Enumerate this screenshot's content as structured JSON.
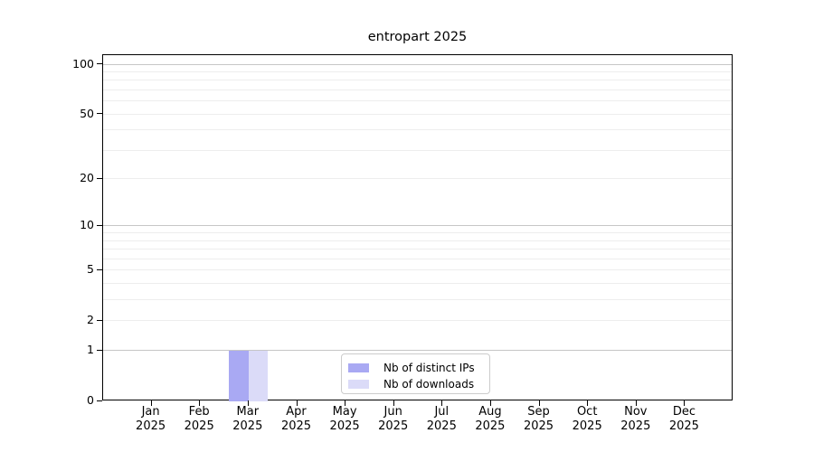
{
  "chart_data": {
    "type": "bar",
    "title": "entropart 2025",
    "categories": [
      "Jan 2025",
      "Feb 2025",
      "Mar 2025",
      "Apr 2025",
      "May 2025",
      "Jun 2025",
      "Jul 2025",
      "Aug 2025",
      "Sep 2025",
      "Oct 2025",
      "Nov 2025",
      "Dec 2025"
    ],
    "series": [
      {
        "name": "Nb of distinct IPs",
        "color": "#a9a9f3",
        "values": [
          0,
          0,
          1,
          0,
          0,
          0,
          0,
          0,
          0,
          0,
          0,
          0
        ]
      },
      {
        "name": "Nb of downloads",
        "color": "#dbdbf8",
        "values": [
          0,
          0,
          1,
          0,
          0,
          0,
          0,
          0,
          0,
          0,
          0,
          0
        ]
      }
    ],
    "xlabel": "",
    "ylabel": "",
    "yscale": "log1p",
    "ylim": [
      0,
      114
    ],
    "yticks": [
      0,
      1,
      2,
      5,
      10,
      20,
      50,
      100
    ],
    "grid": {
      "major": [
        1,
        10,
        100
      ],
      "minor": [
        2,
        3,
        4,
        5,
        6,
        7,
        8,
        9,
        20,
        30,
        40,
        50,
        60,
        70,
        80,
        90
      ],
      "major_color": "#c6c6c6",
      "minor_color": "#ededed"
    },
    "legend": {
      "position": "bottom-center"
    }
  }
}
